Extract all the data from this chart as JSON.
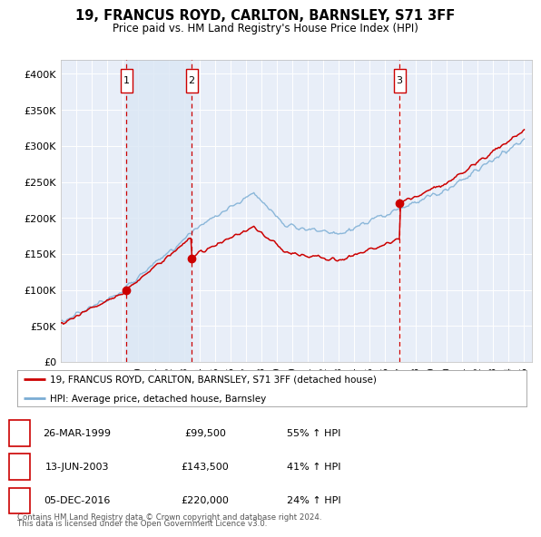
{
  "title": "19, FRANCUS ROYD, CARLTON, BARNSLEY, S71 3FF",
  "subtitle": "Price paid vs. HM Land Registry's House Price Index (HPI)",
  "legend_label_red": "19, FRANCUS ROYD, CARLTON, BARNSLEY, S71 3FF (detached house)",
  "legend_label_blue": "HPI: Average price, detached house, Barnsley",
  "footer1": "Contains HM Land Registry data © Crown copyright and database right 2024.",
  "footer2": "This data is licensed under the Open Government Licence v3.0.",
  "transactions": [
    {
      "num": 1,
      "date": "26-MAR-1999",
      "price": "£99,500",
      "pct": "55% ↑ HPI"
    },
    {
      "num": 2,
      "date": "13-JUN-2003",
      "price": "£143,500",
      "pct": "41% ↑ HPI"
    },
    {
      "num": 3,
      "date": "05-DEC-2016",
      "price": "£220,000",
      "pct": "24% ↑ HPI"
    }
  ],
  "vline_dates": [
    1999.23,
    2003.45,
    2016.92
  ],
  "sale_dates": [
    1999.23,
    2003.45,
    2016.92
  ],
  "sale_prices": [
    99500,
    143500,
    220000
  ],
  "ylim": [
    0,
    420000
  ],
  "yticks": [
    0,
    50000,
    100000,
    150000,
    200000,
    250000,
    300000,
    350000,
    400000
  ],
  "ytick_labels": [
    "£0",
    "£50K",
    "£100K",
    "£150K",
    "£200K",
    "£250K",
    "£300K",
    "£350K",
    "£400K"
  ],
  "red_color": "#cc0000",
  "blue_color": "#7aadd4",
  "vline_color": "#cc0000",
  "shade_color": "#dce8f5",
  "bg_color": "#ffffff",
  "plot_bg": "#e8eef8",
  "grid_color": "#ffffff"
}
